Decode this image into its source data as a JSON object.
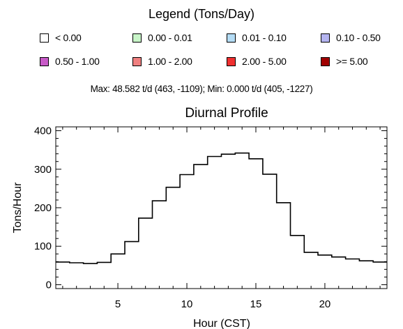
{
  "legend": {
    "title": "Legend (Tons/Day)",
    "items": [
      {
        "label": "< 0.00",
        "color": "#ffffff"
      },
      {
        "label": "0.00 - 0.01",
        "color": "#c8f5c8"
      },
      {
        "label": "0.01 - 0.10",
        "color": "#b4dcf5"
      },
      {
        "label": "0.10 - 0.50",
        "color": "#b4b4f0"
      },
      {
        "label": "0.50 - 1.00",
        "color": "#c85ac8"
      },
      {
        "label": "1.00 - 2.00",
        "color": "#f08080"
      },
      {
        "label": "2.00 - 5.00",
        "color": "#f03030"
      },
      {
        "label": ">= 5.00",
        "color": "#a00000"
      }
    ]
  },
  "stats_text": "Max: 48.582 t/d (463, -1109); Min: 0.000 t/d (405, -1227)",
  "chart_data": {
    "type": "line",
    "style": "step",
    "title": "Diurnal Profile",
    "xlabel": "Hour (CST)",
    "ylabel": "Tons/Hour",
    "xlim": [
      0.5,
      24.5
    ],
    "ylim": [
      -10,
      410
    ],
    "xticks": [
      5,
      10,
      15,
      20
    ],
    "yticks": [
      0,
      100,
      200,
      300,
      400
    ],
    "grid": false,
    "series": [
      {
        "x": [
          1,
          2,
          3,
          4,
          5,
          6,
          7,
          8,
          9,
          10,
          11,
          12,
          13,
          14,
          15,
          16,
          17,
          18,
          19,
          20,
          21,
          22,
          23,
          24
        ],
        "values": [
          59,
          57,
          55,
          58,
          80,
          112,
          173,
          218,
          253,
          286,
          312,
          333,
          339,
          342,
          327,
          287,
          213,
          128,
          84,
          77,
          72,
          67,
          62,
          59
        ]
      }
    ]
  }
}
